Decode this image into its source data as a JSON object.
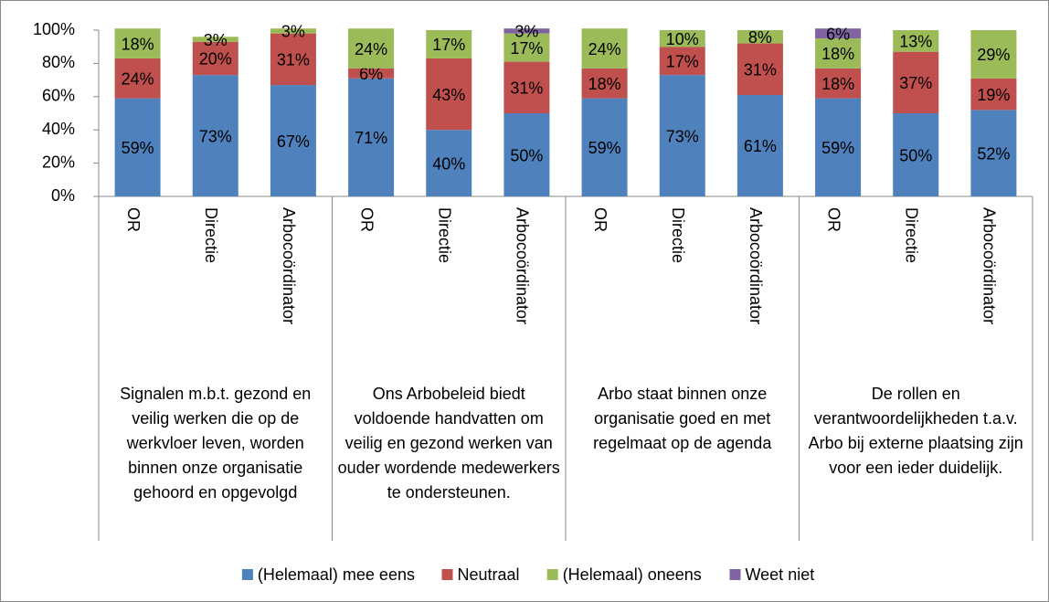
{
  "chart_data": {
    "type": "stacked_bar",
    "categories": [
      "OR",
      "Directie",
      "Arbocoördinator",
      "OR",
      "Directie",
      "Arbocoördinator",
      "OR",
      "Directie",
      "Arbocoördinator",
      "OR",
      "Directie",
      "Arbocoördinator"
    ],
    "group_labels": [
      "Signalen m.b.t. gezond en veilig werken die op de werkvloer leven, worden binnen onze organisatie gehoord en opgevolgd",
      "Ons Arbobeleid biedt voldoende handvatten om veilig en gezond werken van ouder wordende medewerkers te ondersteunen.",
      "Arbo staat binnen onze organisatie goed en met regelmaat op de agenda",
      "De rollen en verantwoordelijkheden t.a.v. Arbo bij externe plaatsing zijn voor een ieder duidelijk."
    ],
    "series": [
      {
        "name": "(Helemaal) mee eens",
        "color": "#4f81bd",
        "values": [
          59,
          73,
          67,
          71,
          40,
          50,
          59,
          73,
          61,
          59,
          50,
          52
        ],
        "value_labels": [
          "59%",
          "73%",
          "67%",
          "71%",
          "40%",
          "50%",
          "59%",
          "73%",
          "61%",
          "59%",
          "50%",
          "52%"
        ]
      },
      {
        "name": "Neutraal",
        "color": "#c0504d",
        "values": [
          24,
          20,
          31,
          6,
          43,
          31,
          18,
          17,
          31,
          18,
          37,
          19
        ],
        "value_labels": [
          "24%",
          "20%",
          "31%",
          "6%",
          "43%",
          "31%",
          "18%",
          "17%",
          "31%",
          "18%",
          "37%",
          "19%"
        ]
      },
      {
        "name": "(Helemaal) oneens",
        "color": "#9bbb59",
        "values": [
          18,
          3,
          3,
          24,
          17,
          17,
          24,
          10,
          8,
          18,
          13,
          29
        ],
        "value_labels": [
          "18%",
          "3%",
          "3%",
          "24%",
          "17%",
          "17%",
          "24%",
          "10%",
          "8%",
          "18%",
          "13%",
          "29%"
        ]
      },
      {
        "name": "Weet niet",
        "color": "#8064a2",
        "values": [
          null,
          null,
          null,
          null,
          null,
          3,
          null,
          null,
          null,
          6,
          null,
          null
        ],
        "value_labels": [
          null,
          null,
          null,
          null,
          null,
          "3%",
          null,
          null,
          null,
          "6%",
          null,
          null
        ]
      }
    ],
    "ylim": [
      0,
      100
    ],
    "yticks": [
      {
        "value": 0,
        "label": "0%"
      },
      {
        "value": 20,
        "label": "20%"
      },
      {
        "value": 40,
        "label": "40%"
      },
      {
        "value": 60,
        "label": "60%"
      },
      {
        "value": 80,
        "label": "80%"
      },
      {
        "value": 100,
        "label": "100%"
      }
    ],
    "legend": "bottom"
  }
}
